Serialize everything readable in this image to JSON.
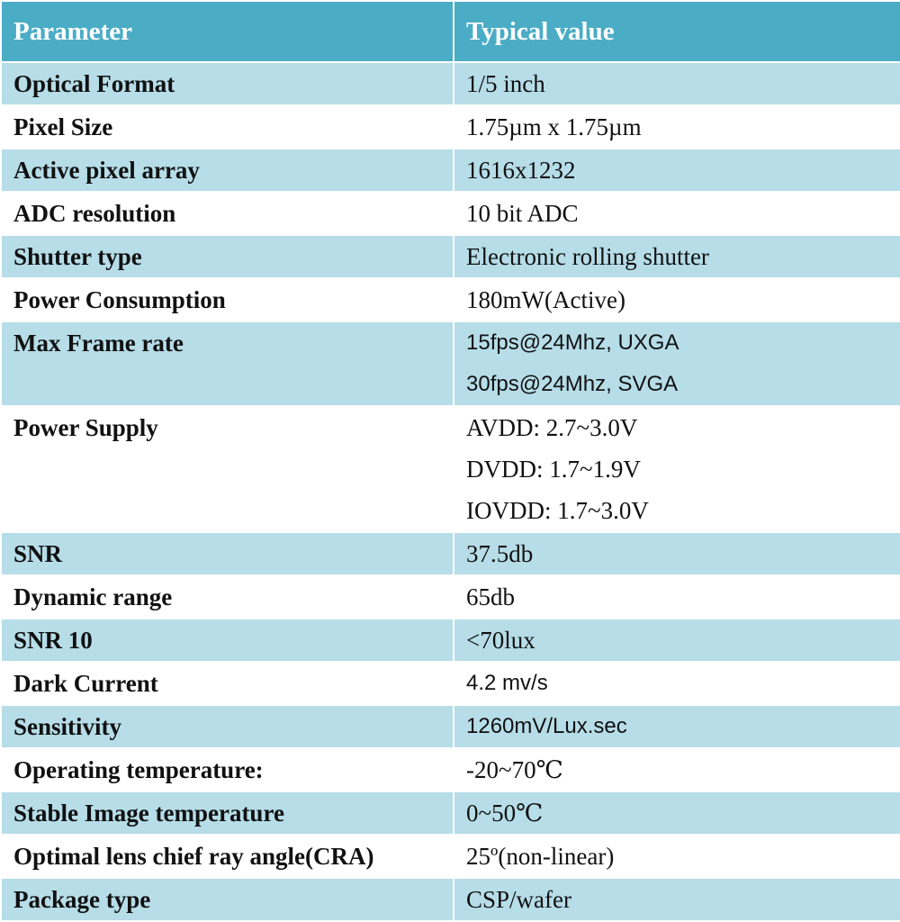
{
  "table": {
    "headers": [
      "Parameter",
      "Typical value"
    ],
    "rows": [
      {
        "param": "Optical Format",
        "values": [
          "1/5 inch"
        ]
      },
      {
        "param": "Pixel Size",
        "values": [
          "1.75µm x 1.75µm"
        ]
      },
      {
        "param": "Active pixel array",
        "values": [
          "1616x1232"
        ]
      },
      {
        "param": "ADC resolution",
        "values": [
          "10 bit ADC"
        ]
      },
      {
        "param": "Shutter type",
        "values": [
          "Electronic rolling shutter"
        ]
      },
      {
        "param": "Power Consumption",
        "values": [
          "180mW(Active)"
        ]
      },
      {
        "param": "Max Frame rate",
        "values": [
          "15fps@24Mhz, UXGA",
          "30fps@24Mhz, SVGA"
        ]
      },
      {
        "param": "Power Supply",
        "values": [
          "AVDD: 2.7~3.0V",
          "DVDD: 1.7~1.9V",
          "IOVDD: 1.7~3.0V"
        ]
      },
      {
        "param": "SNR",
        "values": [
          "37.5db"
        ]
      },
      {
        "param": "Dynamic range",
        "values": [
          "65db"
        ]
      },
      {
        "param": "SNR 10",
        "values": [
          "<70lux"
        ]
      },
      {
        "param": "Dark Current",
        "values": [
          "4.2 mv/s"
        ]
      },
      {
        "param": "Sensitivity",
        "values": [
          "1260mV/Lux.sec"
        ]
      },
      {
        "param": "Operating temperature:",
        "values": [
          "-20~70℃"
        ]
      },
      {
        "param": "Stable Image temperature",
        "values": [
          "0~50℃"
        ]
      },
      {
        "param": "Optimal lens chief ray angle(CRA)",
        "values": [
          "25º(non-linear)"
        ]
      },
      {
        "param": "Package type",
        "values": [
          "CSP/wafer"
        ]
      }
    ]
  }
}
